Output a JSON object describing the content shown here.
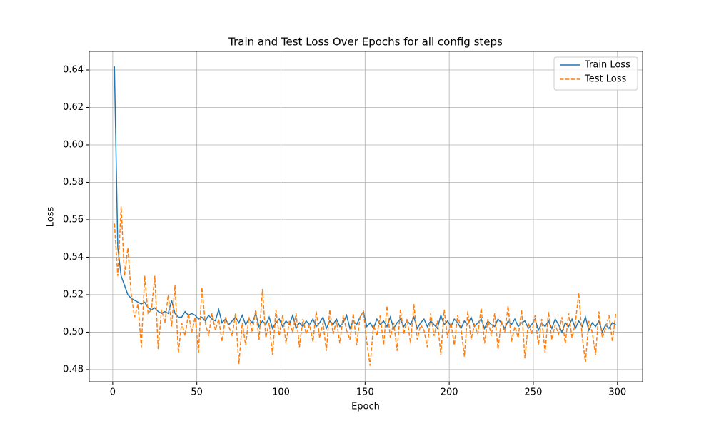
{
  "chart_data": {
    "type": "line",
    "title": "Train and Test Loss Over Epochs for all config steps",
    "x_label": "Epoch",
    "y_label": "Loss",
    "x": [
      1,
      3,
      5,
      7,
      9,
      11,
      13,
      15,
      17,
      19,
      21,
      23,
      25,
      27,
      29,
      31,
      33,
      35,
      37,
      39,
      41,
      43,
      45,
      47,
      49,
      51,
      53,
      55,
      57,
      59,
      61,
      63,
      65,
      67,
      69,
      71,
      73,
      75,
      77,
      79,
      81,
      83,
      85,
      87,
      89,
      91,
      93,
      95,
      97,
      99,
      101,
      103,
      105,
      107,
      109,
      111,
      113,
      115,
      117,
      119,
      121,
      123,
      125,
      127,
      129,
      131,
      133,
      135,
      137,
      139,
      141,
      143,
      145,
      147,
      149,
      151,
      153,
      155,
      157,
      159,
      161,
      163,
      165,
      167,
      169,
      171,
      173,
      175,
      177,
      179,
      181,
      183,
      185,
      187,
      189,
      191,
      193,
      195,
      197,
      199,
      201,
      203,
      205,
      207,
      209,
      211,
      213,
      215,
      217,
      219,
      221,
      223,
      225,
      227,
      229,
      231,
      233,
      235,
      237,
      239,
      241,
      243,
      245,
      247,
      249,
      251,
      253,
      255,
      257,
      259,
      261,
      263,
      265,
      267,
      269,
      271,
      273,
      275,
      277,
      279,
      281,
      283,
      285,
      287,
      289,
      291,
      293,
      295,
      297,
      299
    ],
    "series": [
      {
        "name": "Train Loss",
        "color": "#1f77b4",
        "linestyle": "solid",
        "values": [
          0.642,
          0.545,
          0.53,
          0.525,
          0.52,
          0.518,
          0.517,
          0.516,
          0.515,
          0.516,
          0.513,
          0.512,
          0.513,
          0.511,
          0.51,
          0.511,
          0.51,
          0.517,
          0.51,
          0.508,
          0.508,
          0.511,
          0.509,
          0.51,
          0.509,
          0.507,
          0.508,
          0.506,
          0.509,
          0.507,
          0.506,
          0.512,
          0.505,
          0.507,
          0.504,
          0.506,
          0.508,
          0.505,
          0.509,
          0.504,
          0.507,
          0.505,
          0.51,
          0.503,
          0.506,
          0.504,
          0.508,
          0.502,
          0.505,
          0.507,
          0.503,
          0.506,
          0.504,
          0.509,
          0.502,
          0.505,
          0.503,
          0.506,
          0.504,
          0.507,
          0.503,
          0.505,
          0.508,
          0.502,
          0.506,
          0.504,
          0.507,
          0.503,
          0.505,
          0.509,
          0.502,
          0.506,
          0.504,
          0.508,
          0.511,
          0.503,
          0.505,
          0.502,
          0.507,
          0.504,
          0.506,
          0.503,
          0.508,
          0.502,
          0.505,
          0.507,
          0.503,
          0.506,
          0.504,
          0.508,
          0.502,
          0.505,
          0.507,
          0.503,
          0.506,
          0.504,
          0.502,
          0.509,
          0.504,
          0.506,
          0.503,
          0.507,
          0.505,
          0.502,
          0.506,
          0.504,
          0.508,
          0.503,
          0.505,
          0.507,
          0.502,
          0.506,
          0.504,
          0.503,
          0.507,
          0.505,
          0.502,
          0.506,
          0.504,
          0.507,
          0.503,
          0.505,
          0.506,
          0.502,
          0.504,
          0.507,
          0.501,
          0.505,
          0.503,
          0.506,
          0.502,
          0.507,
          0.504,
          0.5,
          0.505,
          0.503,
          0.507,
          0.502,
          0.506,
          0.503,
          0.508,
          0.501,
          0.505,
          0.503,
          0.506,
          0.5,
          0.504,
          0.502,
          0.505,
          0.504
        ]
      },
      {
        "name": "Test Loss",
        "color": "#ff7f0e",
        "linestyle": "dashed",
        "values": [
          0.558,
          0.53,
          0.567,
          0.53,
          0.545,
          0.52,
          0.508,
          0.515,
          0.492,
          0.53,
          0.51,
          0.512,
          0.53,
          0.491,
          0.512,
          0.505,
          0.52,
          0.503,
          0.525,
          0.489,
          0.505,
          0.498,
          0.51,
          0.5,
          0.508,
          0.489,
          0.524,
          0.505,
          0.498,
          0.51,
          0.501,
          0.507,
          0.495,
          0.508,
          0.503,
          0.498,
          0.51,
          0.483,
          0.505,
          0.493,
          0.508,
          0.5,
          0.512,
          0.496,
          0.523,
          0.497,
          0.505,
          0.488,
          0.512,
          0.498,
          0.509,
          0.494,
          0.506,
          0.5,
          0.51,
          0.492,
          0.507,
          0.499,
          0.504,
          0.495,
          0.511,
          0.497,
          0.505,
          0.49,
          0.512,
          0.499,
          0.506,
          0.494,
          0.509,
          0.501,
          0.496,
          0.51,
          0.493,
          0.508,
          0.511,
          0.495,
          0.482,
          0.504,
          0.498,
          0.509,
          0.493,
          0.514,
          0.497,
          0.505,
          0.49,
          0.512,
          0.499,
          0.507,
          0.494,
          0.515,
          0.496,
          0.504,
          0.501,
          0.492,
          0.51,
          0.498,
          0.506,
          0.488,
          0.512,
          0.497,
          0.505,
          0.493,
          0.509,
          0.502,
          0.487,
          0.511,
          0.496,
          0.504,
          0.499,
          0.513,
          0.494,
          0.507,
          0.498,
          0.51,
          0.491,
          0.506,
          0.5,
          0.514,
          0.495,
          0.503,
          0.497,
          0.512,
          0.486,
          0.505,
          0.499,
          0.509,
          0.493,
          0.507,
          0.489,
          0.511,
          0.496,
          0.504,
          0.499,
          0.508,
          0.494,
          0.51,
          0.497,
          0.505,
          0.521,
          0.498,
          0.484,
          0.506,
          0.5,
          0.488,
          0.511,
          0.497,
          0.502,
          0.509,
          0.495,
          0.51
        ]
      }
    ],
    "xlim": [
      -13.95,
      314.95
    ],
    "ylim": [
      0.4735,
      0.6499
    ],
    "xticks": [
      0,
      50,
      100,
      150,
      200,
      250,
      300
    ],
    "yticks": [
      0.48,
      {
        "value": 0.5,
        "label": "0.50"
      },
      0.52,
      0.54,
      0.56,
      0.58,
      {
        "value": 0.6,
        "label": "0.60"
      },
      0.62,
      0.64
    ],
    "grid": true,
    "legend": "upper right"
  }
}
